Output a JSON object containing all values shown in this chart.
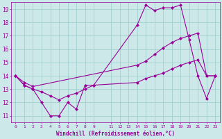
{
  "xlabel": "Windchill (Refroidissement éolien,°C)",
  "background_color": "#cce8e8",
  "grid_color": "#99cccc",
  "line_color": "#990099",
  "xlim": [
    -0.5,
    23.5
  ],
  "ylim": [
    10.5,
    19.5
  ],
  "xticks": [
    0,
    1,
    2,
    3,
    4,
    5,
    6,
    7,
    8,
    9,
    11,
    12,
    13,
    14,
    15,
    16,
    17,
    18,
    19,
    20,
    21,
    22,
    23
  ],
  "yticks": [
    11,
    12,
    13,
    14,
    15,
    16,
    17,
    18,
    19
  ],
  "line1_x": [
    0,
    1,
    2,
    3,
    4,
    5,
    6,
    7,
    8,
    9,
    14,
    15,
    16,
    17,
    18,
    19,
    20,
    21,
    22,
    23
  ],
  "line1_y": [
    14.0,
    13.3,
    13.0,
    12.0,
    11.0,
    11.0,
    12.0,
    11.5,
    13.3,
    13.3,
    17.8,
    19.3,
    18.9,
    19.1,
    19.1,
    19.3,
    16.7,
    14.0,
    12.3,
    14.0
  ],
  "line2_x": [
    0,
    1,
    2,
    14,
    15,
    16,
    17,
    18,
    19,
    20,
    21,
    22,
    23
  ],
  "line2_y": [
    14.0,
    13.5,
    13.2,
    14.8,
    15.1,
    15.6,
    16.1,
    16.5,
    16.8,
    17.0,
    17.2,
    14.0,
    14.0
  ],
  "line3_x": [
    0,
    1,
    2,
    3,
    4,
    5,
    6,
    7,
    8,
    9,
    14,
    15,
    16,
    17,
    18,
    19,
    20,
    21,
    22,
    23
  ],
  "line3_y": [
    14.0,
    13.3,
    13.0,
    12.8,
    12.5,
    12.2,
    12.5,
    12.7,
    13.0,
    13.3,
    13.5,
    13.8,
    14.0,
    14.2,
    14.5,
    14.8,
    15.0,
    15.2,
    14.0,
    14.0
  ]
}
